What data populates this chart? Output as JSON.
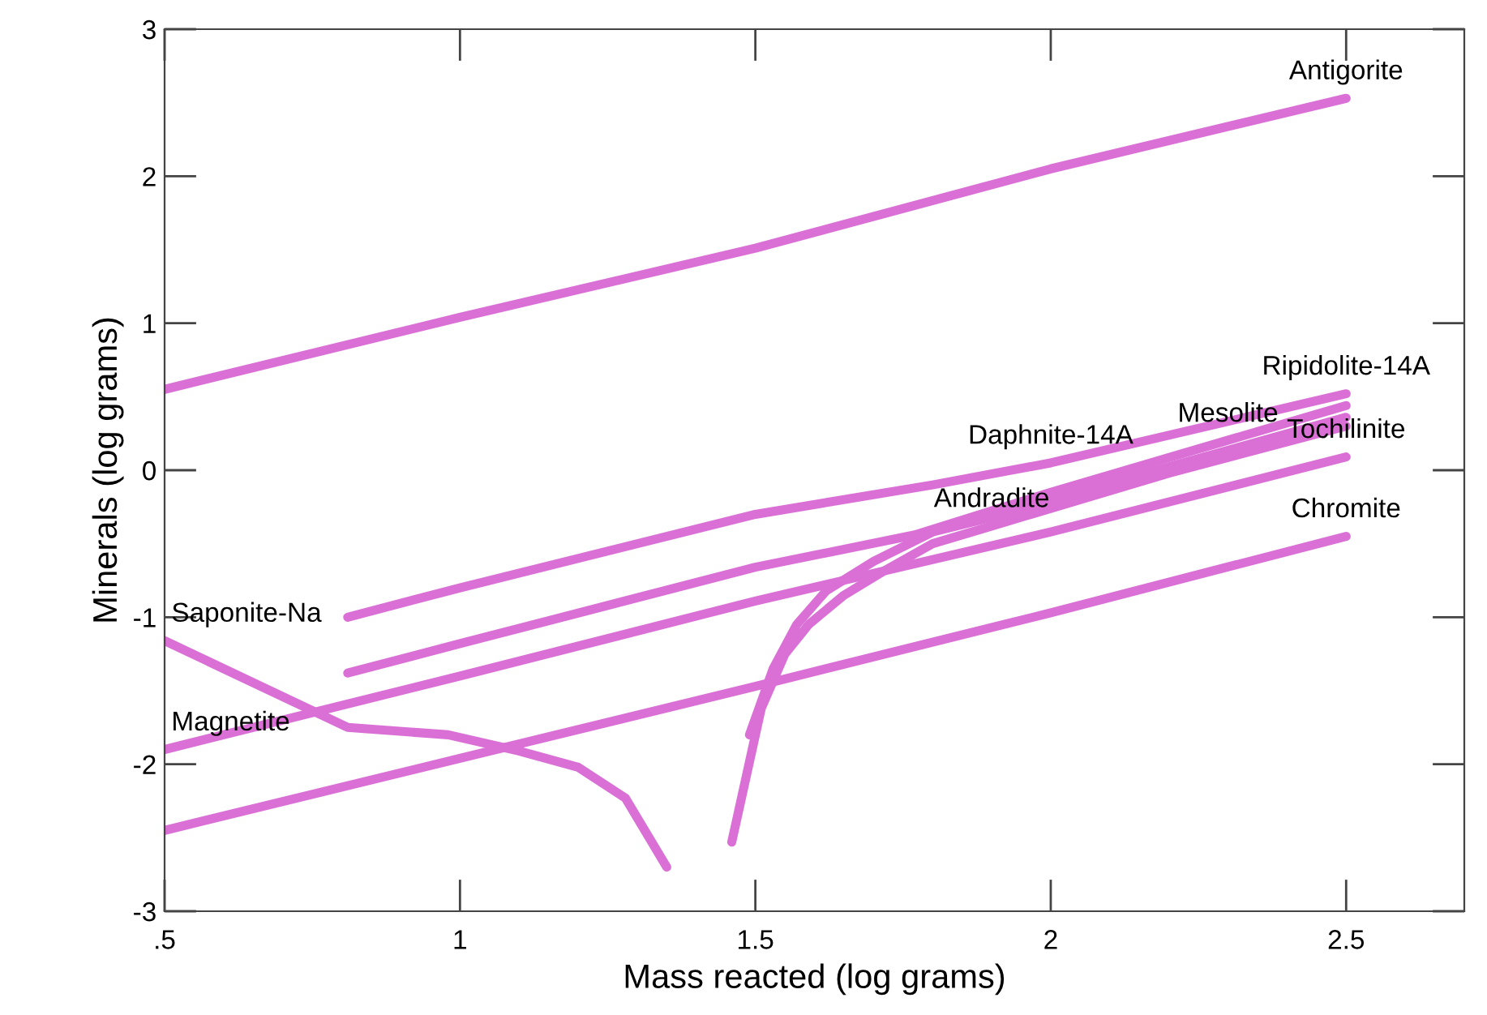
{
  "chart_data": {
    "type": "line",
    "xlabel": "Mass reacted (log grams)",
    "ylabel": "Minerals (log grams)",
    "xlim": [
      0.5,
      2.7
    ],
    "ylim": [
      -3,
      3
    ],
    "xticks": [
      {
        "value": 0.5,
        "label": ".5"
      },
      1,
      1.5,
      2,
      2.5
    ],
    "yticks": [
      -3,
      -2,
      -1,
      0,
      1,
      2,
      3
    ],
    "grid": false,
    "marker": "none",
    "line_style": "solid",
    "series": [
      {
        "color": "#da70d6",
        "x": [
          0.5,
          1.0,
          1.5,
          2.0,
          2.5
        ],
        "values": [
          0.55,
          1.04,
          1.51,
          2.05,
          2.53
        ]
      },
      {
        "color": "#da70d6",
        "x": [
          0.81,
          1.0,
          1.5,
          1.8,
          2.0,
          2.5
        ],
        "values": [
          -1.0,
          -0.8,
          -0.3,
          -0.1,
          0.05,
          0.52
        ]
      },
      {
        "color": "#da70d6",
        "x": [
          0.81,
          1.0,
          1.5,
          1.77,
          2.0,
          2.5
        ],
        "values": [
          -1.38,
          -1.18,
          -0.66,
          -0.44,
          -0.15,
          0.44
        ]
      },
      {
        "color": "#da70d6",
        "x": [
          0.5,
          1.0,
          1.5,
          2.0,
          2.5
        ],
        "values": [
          -1.9,
          -1.4,
          -0.89,
          -0.42,
          0.09
        ]
      },
      {
        "color": "#da70d6",
        "x": [
          0.5,
          1.0,
          1.5,
          2.0,
          2.5
        ],
        "values": [
          -2.45,
          -1.96,
          -1.47,
          -0.97,
          -0.45
        ]
      },
      {
        "color": "#da70d6",
        "x": [
          0.5,
          0.81,
          0.98,
          1.1,
          1.2,
          1.28,
          1.35
        ],
        "values": [
          -1.16,
          -1.75,
          -1.8,
          -1.91,
          -2.02,
          -2.23,
          -2.7
        ]
      },
      {
        "color": "#da70d6",
        "x": [
          1.46,
          1.51,
          1.55,
          1.59,
          1.65,
          1.72,
          1.8,
          1.9,
          2.0,
          2.2,
          2.5
        ],
        "values": [
          -2.53,
          -1.62,
          -1.25,
          -1.05,
          -0.85,
          -0.68,
          -0.5,
          -0.38,
          -0.26,
          -0.02,
          0.3
        ]
      },
      {
        "color": "#da70d6",
        "x": [
          1.49,
          1.53,
          1.57,
          1.62,
          1.7,
          1.8,
          1.9,
          2.0,
          2.5
        ],
        "values": [
          -1.8,
          -1.35,
          -1.05,
          -0.82,
          -0.62,
          -0.42,
          -0.32,
          -0.2,
          0.36
        ]
      }
    ],
    "annotations": [
      {
        "text": "Antigorite",
        "x": 2.5,
        "y": 2.53
      },
      {
        "text": "Ripidolite-14A",
        "x": 2.5,
        "y": 0.52
      },
      {
        "text": "Daphnite-14A",
        "x": 2.0,
        "y": 0.05
      },
      {
        "text": "Mesolite",
        "x": 2.3,
        "y": 0.2
      },
      {
        "text": "Tochilinite",
        "x": 2.5,
        "y": 0.09
      },
      {
        "text": "Andradite",
        "x": 1.9,
        "y": -0.38
      },
      {
        "text": "Chromite",
        "x": 2.5,
        "y": -0.45
      },
      {
        "text": "Saponite-Na",
        "x": 0.5,
        "y": -1.16
      },
      {
        "text": "Magnetite",
        "x": 0.5,
        "y": -1.9
      }
    ]
  }
}
